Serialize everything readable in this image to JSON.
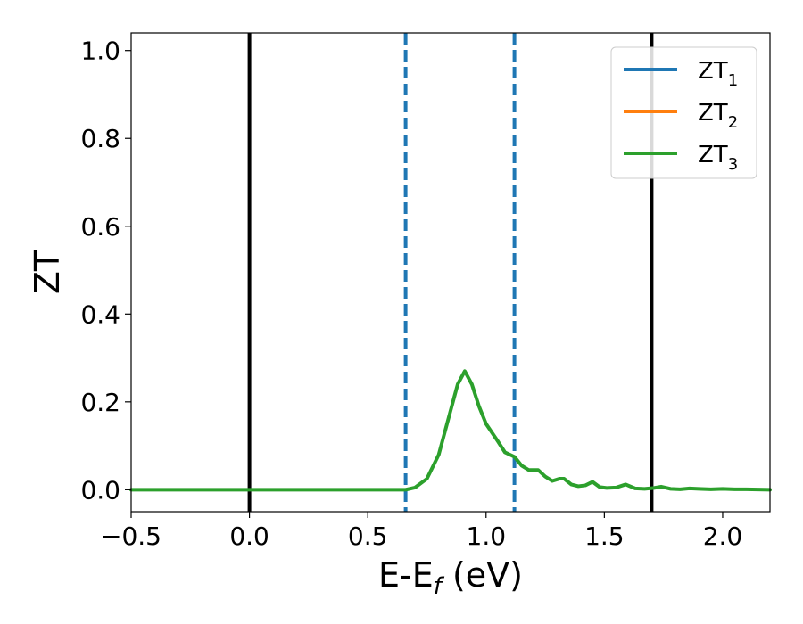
{
  "chart_data": {
    "type": "line",
    "xlabel": {
      "main": "E-E",
      "sub": "f",
      "unit": " (eV)"
    },
    "ylabel": "ZT",
    "xlim": [
      -0.5,
      2.2
    ],
    "ylim": [
      -0.05,
      1.04
    ],
    "xticks": [
      {
        "value": -0.5,
        "label": "−0.5"
      },
      {
        "value": 0.0,
        "label": "0.0"
      },
      {
        "value": 0.5,
        "label": "0.5"
      },
      {
        "value": 1.0,
        "label": "1.0"
      },
      {
        "value": 1.5,
        "label": "1.5"
      },
      {
        "value": 2.0,
        "label": "2.0"
      }
    ],
    "yticks": [
      {
        "value": 0.0,
        "label": "0.0"
      },
      {
        "value": 0.2,
        "label": "0.2"
      },
      {
        "value": 0.4,
        "label": "0.4"
      },
      {
        "value": 0.6,
        "label": "0.6"
      },
      {
        "value": 0.8,
        "label": "0.8"
      },
      {
        "value": 1.0,
        "label": "1.0"
      }
    ],
    "grid": false,
    "legend_position": "top-right",
    "vertical_lines": [
      {
        "x": 0.0,
        "style": "solid",
        "color": "#000000"
      },
      {
        "x": 1.7,
        "style": "solid",
        "color": "#000000"
      },
      {
        "x": 0.66,
        "style": "dashed",
        "color": "#1f77b4"
      },
      {
        "x": 1.12,
        "style": "dashed",
        "color": "#1f77b4"
      }
    ],
    "series": [
      {
        "name": "ZT",
        "sub": "1",
        "color": "#1f77b4"
      },
      {
        "name": "ZT",
        "sub": "2",
        "color": "#ff7f0e"
      },
      {
        "name": "ZT",
        "sub": "3",
        "color": "#2ca02c",
        "x": [
          -0.5,
          0.0,
          0.5,
          0.66,
          0.7,
          0.75,
          0.8,
          0.84,
          0.88,
          0.91,
          0.94,
          0.97,
          1.0,
          1.05,
          1.08,
          1.12,
          1.15,
          1.18,
          1.22,
          1.25,
          1.28,
          1.31,
          1.33,
          1.36,
          1.39,
          1.42,
          1.45,
          1.48,
          1.51,
          1.55,
          1.59,
          1.63,
          1.67,
          1.71,
          1.74,
          1.78,
          1.82,
          1.86,
          1.9,
          1.95,
          2.0,
          2.05,
          2.1,
          2.2
        ],
        "y": [
          0.0,
          0.0,
          0.0,
          0.0,
          0.005,
          0.025,
          0.08,
          0.16,
          0.24,
          0.27,
          0.24,
          0.19,
          0.15,
          0.11,
          0.085,
          0.075,
          0.055,
          0.045,
          0.045,
          0.03,
          0.02,
          0.025,
          0.025,
          0.012,
          0.008,
          0.01,
          0.018,
          0.006,
          0.004,
          0.005,
          0.012,
          0.003,
          0.002,
          0.004,
          0.007,
          0.002,
          0.001,
          0.003,
          0.002,
          0.001,
          0.002,
          0.001,
          0.001,
          0.0
        ]
      }
    ]
  }
}
